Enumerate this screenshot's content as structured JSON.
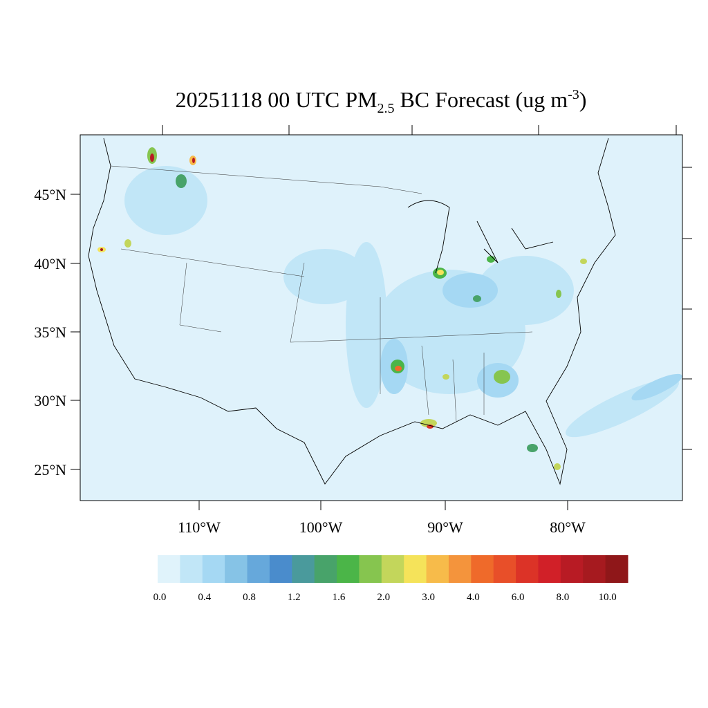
{
  "title": {
    "main": "20251118 00 UTC PM",
    "sub": "2.5",
    "mid": " BC Forecast (ug m",
    "sup": "-3",
    "end": ")"
  },
  "lat_labels": [
    "45°N",
    "40°N",
    "35°N",
    "30°N",
    "25°N"
  ],
  "lon_labels": [
    "110°W",
    "100°W",
    "90°W",
    "80°W"
  ],
  "colorbar": {
    "colors": [
      "#e0f3fb",
      "#c1e6f7",
      "#a5d8f3",
      "#86c3e6",
      "#66a8db",
      "#4a8ccc",
      "#4a9a9c",
      "#48a36a",
      "#4bb548",
      "#86c54f",
      "#c3d65b",
      "#f5e35a",
      "#f7bb4a",
      "#f4943c",
      "#ef6a2a",
      "#e84f29",
      "#dc3327",
      "#d12028",
      "#b81b24",
      "#a61a1f",
      "#8f1719"
    ],
    "labels": [
      "0.0",
      "0.4",
      "0.8",
      "1.2",
      "1.6",
      "2.0",
      "3.0",
      "4.0",
      "6.0",
      "8.0",
      "10.0"
    ]
  }
}
